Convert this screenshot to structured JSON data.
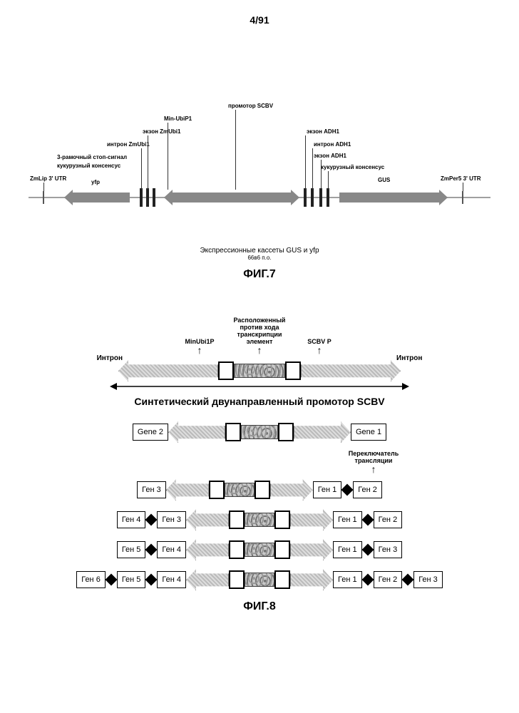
{
  "page_num": "4/91",
  "fig7": {
    "title": "ФИГ.7",
    "caption": "Экспрессионные кассеты GUS и yfp",
    "sub": "66в6 п.о.",
    "labels": {
      "zmlip": "ZmLip 3' UTR",
      "left_cassette": [
        "3‑рамочный стоп‑сигнал",
        "кукурузный консенсус"
      ],
      "yfp": "yfp",
      "intron_zmubi1": "интрон ZmUbi1",
      "exon_zmubi1": "экзон ZmUbi1",
      "min_ubip1": "Min‑UbiP1",
      "scbv_prom": "промотор SCBV",
      "exon_adh1": "экзон ADH1",
      "intron_adh1": "интрон ADH1",
      "exon_adh1b": "экзон ADH1",
      "right_consensus": "кукурузный консенсус",
      "gus": "GUS",
      "zmper5": "ZmPer5 3' UTR"
    },
    "colors": {
      "arrow": "#888888",
      "baseline": "#a0a0a0",
      "text": "#000000"
    }
  },
  "fig8": {
    "title": "ФИГ.8",
    "headline": "Синтетический двунаправленный промотор SCBV",
    "top_labels": {
      "minubi": "MinUbi1P",
      "upstream": "Расположенный\nпротив хода\nтранскрипции\nэлемент",
      "scbv": "SCBV P"
    },
    "intron": "Интрон",
    "gene1": "Gene 1",
    "gene2": "Gene 2",
    "switch": "Переключатель\nтрансляции",
    "rows": [
      [
        "Ген 3",
        "Ген 1",
        "Ген 2"
      ],
      [
        "Ген 4",
        "Ген 3",
        "Ген 1",
        "Ген 2"
      ],
      [
        "Ген 5",
        "Ген 4",
        "Ген 1",
        "Ген 3"
      ],
      [
        "Ген 6",
        "Ген 5",
        "Ген 4",
        "Ген 1",
        "Ген 2",
        "Ген 3"
      ]
    ],
    "promoter_widths": {
      "large_texture": 70,
      "small_texture": 40,
      "arrow_large": 140,
      "arrow_small": 70
    }
  }
}
